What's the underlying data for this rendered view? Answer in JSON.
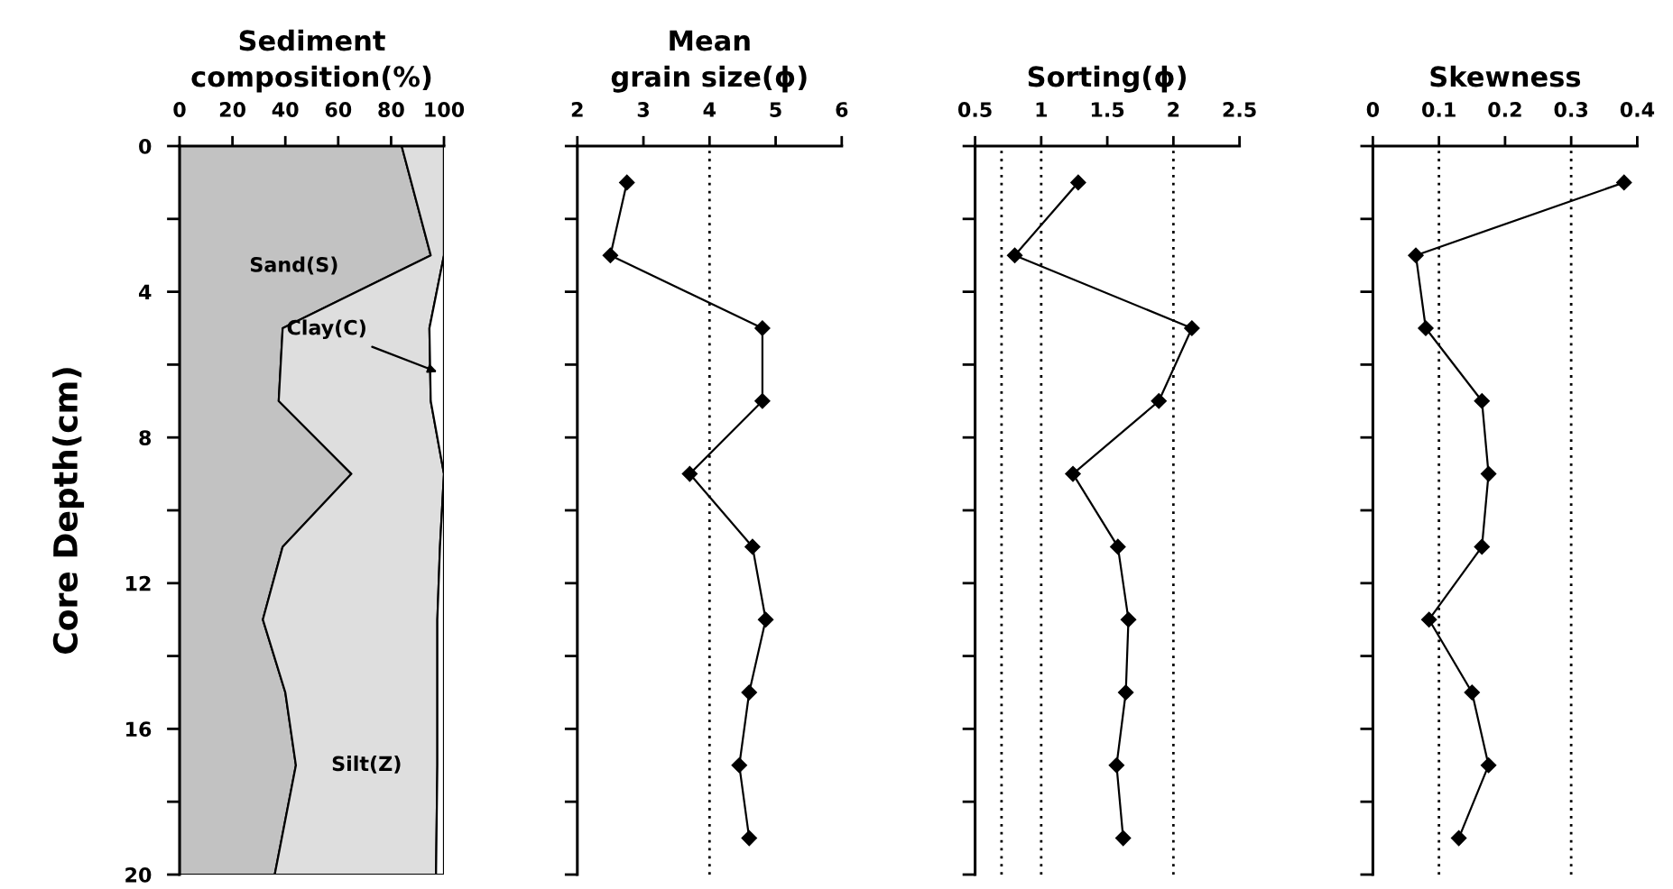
{
  "chart_data": [
    {
      "type": "area",
      "title": "Sediment\ncomposition(%)",
      "ylabel": "Core Depth(cm)",
      "orientation": "horizontal",
      "stacked": true,
      "x": [
        0,
        3,
        5,
        7,
        9,
        11,
        13,
        15,
        17,
        20
      ],
      "series": [
        {
          "name": "Sand(S)",
          "color": "#c2c2c2",
          "values": [
            84,
            95,
            39,
            37.5,
            65,
            39,
            31.5,
            40,
            44,
            36
          ]
        },
        {
          "name": "Silt(Z)",
          "color": "#dedede",
          "values": [
            16,
            5,
            55.5,
            57.5,
            35,
            59.5,
            66,
            57.5,
            53.5,
            61
          ]
        },
        {
          "name": "Clay(C)",
          "color": "#ffffff",
          "values": [
            0,
            0,
            5.5,
            5,
            0,
            1.5,
            2.5,
            2.5,
            2.5,
            3
          ]
        }
      ],
      "xlim": [
        0,
        100
      ],
      "xticks": [
        0,
        20,
        40,
        60,
        80,
        100
      ],
      "ylim": [
        20,
        0
      ],
      "yticks": [
        0,
        {
          "value": 2,
          "label": null
        },
        4,
        {
          "value": 6,
          "label": null
        },
        8,
        {
          "value": 10,
          "label": null
        },
        12,
        {
          "value": 14,
          "label": null
        },
        16,
        {
          "value": 18,
          "label": null
        },
        20
      ]
    },
    {
      "type": "line",
      "title": "Mean\ngrain size(ϕ)",
      "orientation": "horizontal",
      "marker": "diamond",
      "line_style": "solid",
      "x": [
        1,
        3,
        5,
        7,
        9,
        11,
        13,
        15,
        17,
        19
      ],
      "series": [
        {
          "color": "#000000",
          "values": [
            2.75,
            2.5,
            4.8,
            4.8,
            3.7,
            4.65,
            4.85,
            4.6,
            4.45,
            4.6
          ]
        }
      ],
      "xlim": [
        2,
        6
      ],
      "xticks": [
        2,
        3,
        4,
        5,
        6
      ],
      "ylim": [
        20,
        0
      ],
      "yticks": [
        0,
        2,
        4,
        6,
        8,
        10,
        12,
        14,
        16,
        18,
        20
      ],
      "tick_labels": "x",
      "ref_lines": [
        {
          "axis": "x",
          "value": 4,
          "color": "#000000",
          "line_style": "dotted"
        }
      ]
    },
    {
      "type": "line",
      "title": "Sorting(ϕ)",
      "orientation": "horizontal",
      "marker": "diamond",
      "line_style": "solid",
      "x": [
        1,
        3,
        5,
        7,
        9,
        11,
        13,
        15,
        17,
        19
      ],
      "series": [
        {
          "color": "#000000",
          "values": [
            1.28,
            0.8,
            2.14,
            1.89,
            1.24,
            1.58,
            1.66,
            1.64,
            1.57,
            1.62
          ]
        }
      ],
      "xlim": [
        0.5,
        2.5
      ],
      "xticks": [
        0.5,
        1,
        1.5,
        2,
        2.5
      ],
      "ylim": [
        20,
        0
      ],
      "yticks": [
        0,
        2,
        4,
        6,
        8,
        10,
        12,
        14,
        16,
        18,
        20
      ],
      "tick_labels": "x",
      "ref_lines": [
        {
          "axis": "x",
          "value": 0.7,
          "color": "#000000",
          "line_style": "dotted"
        },
        {
          "axis": "x",
          "value": 1,
          "color": "#000000",
          "line_style": "dotted"
        },
        {
          "axis": "x",
          "value": 2,
          "color": "#000000",
          "line_style": "dotted"
        }
      ]
    },
    {
      "type": "line",
      "title": "Skewness",
      "orientation": "horizontal",
      "marker": "diamond",
      "line_style": "solid",
      "x": [
        1,
        3,
        5,
        7,
        9,
        11,
        13,
        15,
        17,
        19
      ],
      "series": [
        {
          "color": "#000000",
          "values": [
            0.38,
            0.065,
            0.08,
            0.165,
            0.175,
            0.165,
            0.085,
            0.15,
            0.175,
            0.13
          ]
        }
      ],
      "xlim": [
        0,
        0.4
      ],
      "xticks": [
        0,
        0.1,
        0.2,
        0.3,
        0.4
      ],
      "ylim": [
        20,
        0
      ],
      "yticks": [
        0,
        2,
        4,
        6,
        8,
        10,
        12,
        14,
        16,
        18,
        20
      ],
      "tick_labels": "x",
      "ref_lines": [
        {
          "axis": "x",
          "value": 0.1,
          "color": "#000000",
          "line_style": "dotted"
        },
        {
          "axis": "x",
          "value": 0.3,
          "color": "#000000",
          "line_style": "dotted"
        }
      ]
    }
  ]
}
